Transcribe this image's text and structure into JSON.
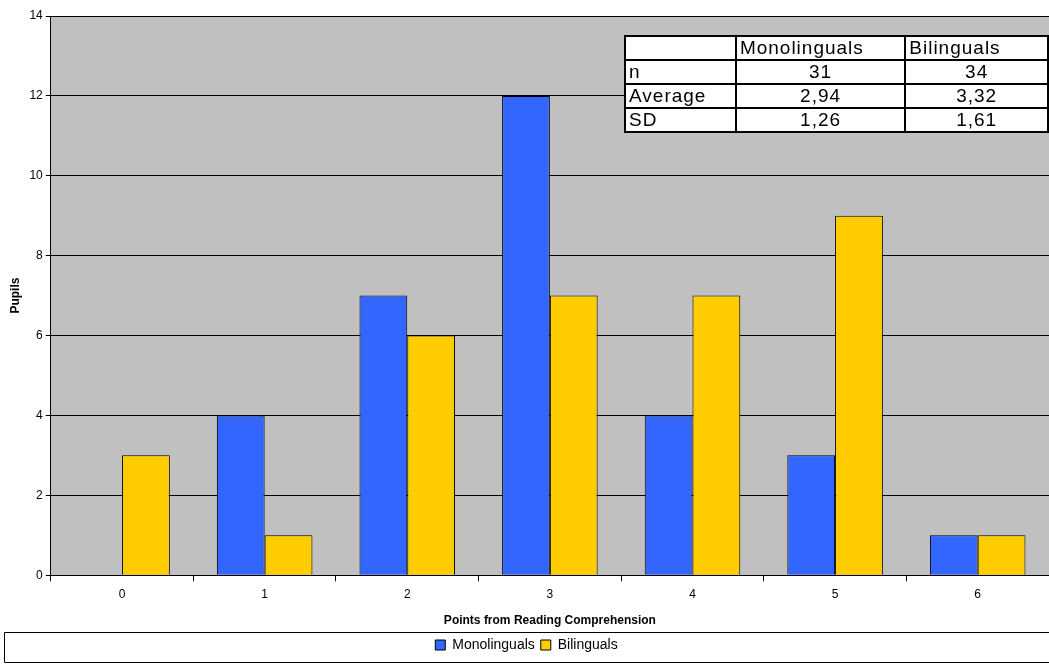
{
  "chart_data": {
    "type": "bar",
    "xlabel": "Points from Reading Comprehension",
    "ylabel": "Pupils",
    "categories": [
      "0",
      "1",
      "2",
      "3",
      "4",
      "5",
      "6"
    ],
    "series": [
      {
        "name": "Monolinguals",
        "color": "#3366ff",
        "values": [
          0,
          4,
          7,
          12,
          4,
          3,
          1
        ]
      },
      {
        "name": "Bilinguals",
        "color": "#ffcc00",
        "values": [
          3,
          1,
          6,
          7,
          7,
          9,
          1
        ]
      }
    ],
    "ylim": [
      0,
      14
    ],
    "yticks": [
      0,
      2,
      4,
      6,
      8,
      10,
      12,
      14
    ],
    "grid": "y",
    "legend": "bottom",
    "annotations": [
      "Monolinguals",
      "Bilinguals",
      "n",
      "31",
      "34",
      "Average",
      "2,94",
      "3,32",
      "SD",
      "1,26",
      "1,61"
    ]
  }
}
